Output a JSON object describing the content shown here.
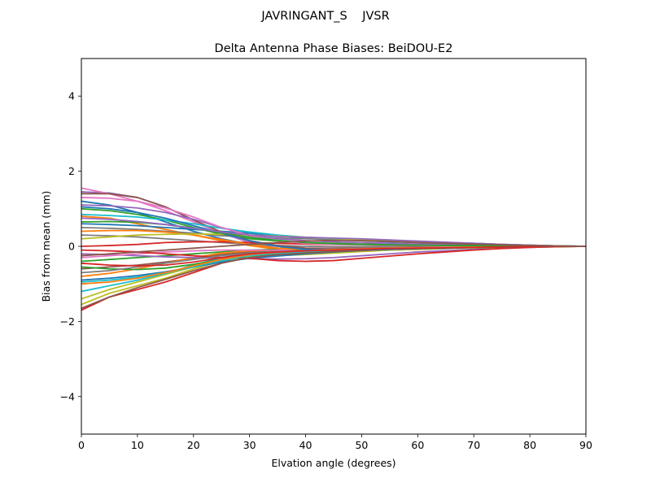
{
  "figure": {
    "suptitle": "JAVRINGANT_S    JVSR"
  },
  "chart_data": {
    "type": "line",
    "title": "Delta Antenna Phase Biases: BeiDOU-E2",
    "xlabel": "Elvation angle (degrees)",
    "ylabel": "Bias from mean (mm)",
    "xlim": [
      0,
      90
    ],
    "ylim": [
      -5,
      5
    ],
    "xticks": [
      0,
      10,
      20,
      30,
      40,
      50,
      60,
      70,
      80,
      90
    ],
    "yticks": [
      -4,
      -2,
      0,
      2,
      4
    ],
    "ytick_labels": [
      "−4",
      "−2",
      "0",
      "2",
      "4"
    ],
    "grid": false,
    "legend": "none",
    "x": [
      0,
      5,
      10,
      15,
      20,
      25,
      30,
      35,
      40,
      45,
      50,
      55,
      60,
      65,
      70,
      75,
      80,
      85,
      90
    ],
    "series": [
      {
        "color": "#1f77b4",
        "values": [
          1.2,
          1.1,
          0.9,
          0.65,
          0.4,
          0.2,
          0.05,
          -0.05,
          -0.08,
          -0.07,
          -0.05,
          -0.04,
          -0.03,
          -0.02,
          -0.02,
          -0.01,
          -0.01,
          0,
          0
        ]
      },
      {
        "color": "#ff7f0e",
        "values": [
          0.8,
          0.75,
          0.6,
          0.45,
          0.3,
          0.15,
          0.02,
          -0.08,
          -0.1,
          -0.08,
          -0.06,
          -0.05,
          -0.04,
          -0.03,
          -0.02,
          -0.01,
          -0.01,
          0,
          0
        ]
      },
      {
        "color": "#2ca02c",
        "values": [
          -0.4,
          -0.35,
          -0.3,
          -0.25,
          -0.2,
          -0.15,
          -0.1,
          -0.08,
          -0.06,
          -0.05,
          -0.04,
          -0.03,
          -0.02,
          -0.02,
          -0.01,
          -0.01,
          0,
          0,
          0
        ]
      },
      {
        "color": "#d62728",
        "values": [
          -1.7,
          -1.35,
          -1.15,
          -0.95,
          -0.7,
          -0.45,
          -0.22,
          -0.12,
          -0.08,
          -0.05,
          -0.03,
          -0.02,
          -0.02,
          -0.01,
          -0.01,
          0,
          0,
          0,
          0
        ]
      },
      {
        "color": "#9467bd",
        "values": [
          1.45,
          1.42,
          1.3,
          1.05,
          0.7,
          0.35,
          0.1,
          -0.05,
          -0.1,
          -0.08,
          -0.06,
          -0.05,
          -0.04,
          -0.03,
          -0.02,
          -0.01,
          -0.01,
          0,
          0
        ]
      },
      {
        "color": "#8c564b",
        "values": [
          -0.6,
          -0.55,
          -0.5,
          -0.42,
          -0.32,
          -0.22,
          -0.15,
          -0.1,
          -0.07,
          -0.05,
          -0.04,
          -0.03,
          -0.02,
          -0.01,
          -0.01,
          0,
          0,
          0,
          0
        ]
      },
      {
        "color": "#e377c2",
        "values": [
          1.55,
          1.4,
          1.2,
          0.95,
          0.65,
          0.35,
          0.12,
          0.0,
          -0.05,
          -0.05,
          -0.04,
          -0.03,
          -0.02,
          -0.02,
          -0.01,
          -0.01,
          0,
          0,
          0
        ]
      },
      {
        "color": "#7f7f7f",
        "values": [
          0.3,
          0.28,
          0.25,
          0.2,
          0.15,
          0.1,
          0.05,
          0.02,
          0.0,
          -0.01,
          -0.01,
          -0.01,
          0,
          0,
          0,
          0,
          0,
          0,
          0
        ]
      },
      {
        "color": "#bcbd22",
        "values": [
          -1.4,
          -1.15,
          -0.95,
          -0.75,
          -0.55,
          -0.38,
          -0.28,
          -0.25,
          -0.22,
          -0.18,
          -0.14,
          -0.1,
          -0.08,
          -0.06,
          -0.04,
          -0.03,
          -0.02,
          -0.01,
          0
        ]
      },
      {
        "color": "#17becf",
        "values": [
          -1.2,
          -1.05,
          -0.9,
          -0.72,
          -0.5,
          -0.3,
          -0.18,
          -0.14,
          -0.1,
          -0.08,
          -0.06,
          -0.05,
          -0.04,
          -0.03,
          -0.02,
          -0.01,
          -0.01,
          0,
          0
        ]
      },
      {
        "color": "#1f77b4",
        "values": [
          0.6,
          0.58,
          0.55,
          0.5,
          0.45,
          0.4,
          0.35,
          0.28,
          0.22,
          0.18,
          0.15,
          0.12,
          0.1,
          0.08,
          0.06,
          0.04,
          0.03,
          0.01,
          0
        ]
      },
      {
        "color": "#ff7f0e",
        "values": [
          -0.8,
          -0.72,
          -0.6,
          -0.45,
          -0.3,
          -0.18,
          -0.12,
          -0.1,
          -0.08,
          -0.06,
          -0.05,
          -0.04,
          -0.03,
          -0.02,
          -0.02,
          -0.01,
          -0.01,
          0,
          0
        ]
      },
      {
        "color": "#2ca02c",
        "values": [
          1.0,
          0.95,
          0.85,
          0.7,
          0.5,
          0.32,
          0.2,
          0.14,
          0.1,
          0.08,
          0.06,
          0.05,
          0.04,
          0.03,
          0.02,
          0.01,
          0.01,
          0,
          0
        ]
      },
      {
        "color": "#d62728",
        "values": [
          0.0,
          0.02,
          0.05,
          0.1,
          0.12,
          0.12,
          0.1,
          0.08,
          0.06,
          0.05,
          0.04,
          0.03,
          0.02,
          0.01,
          0.01,
          0,
          0,
          0,
          0
        ]
      },
      {
        "color": "#9467bd",
        "values": [
          -0.2,
          -0.22,
          -0.25,
          -0.28,
          -0.3,
          -0.32,
          -0.33,
          -0.34,
          -0.33,
          -0.3,
          -0.25,
          -0.2,
          -0.15,
          -0.12,
          -0.08,
          -0.05,
          -0.03,
          -0.01,
          0
        ]
      },
      {
        "color": "#8c564b",
        "values": [
          1.4,
          1.4,
          1.3,
          1.05,
          0.7,
          0.38,
          0.15,
          0.02,
          -0.05,
          -0.06,
          -0.05,
          -0.04,
          -0.03,
          -0.02,
          -0.02,
          -0.01,
          -0.01,
          0,
          0
        ]
      },
      {
        "color": "#e377c2",
        "values": [
          -0.3,
          -0.25,
          -0.2,
          -0.15,
          -0.12,
          -0.1,
          -0.1,
          -0.1,
          -0.09,
          -0.08,
          -0.06,
          -0.05,
          -0.04,
          -0.03,
          -0.02,
          -0.01,
          -0.01,
          0,
          0
        ]
      },
      {
        "color": "#7f7f7f",
        "values": [
          0.5,
          0.48,
          0.45,
          0.4,
          0.35,
          0.28,
          0.25,
          0.22,
          0.2,
          0.18,
          0.16,
          0.14,
          0.12,
          0.1,
          0.08,
          0.05,
          0.03,
          0.01,
          0
        ]
      },
      {
        "color": "#bcbd22",
        "values": [
          -1.55,
          -1.25,
          -1.05,
          -0.85,
          -0.6,
          -0.4,
          -0.28,
          -0.24,
          -0.2,
          -0.16,
          -0.12,
          -0.1,
          -0.08,
          -0.06,
          -0.04,
          -0.03,
          -0.02,
          -0.01,
          0
        ]
      },
      {
        "color": "#17becf",
        "values": [
          0.85,
          0.82,
          0.78,
          0.7,
          0.6,
          0.48,
          0.38,
          0.3,
          0.24,
          0.2,
          0.17,
          0.15,
          0.13,
          0.1,
          0.08,
          0.05,
          0.03,
          0.01,
          0
        ]
      },
      {
        "color": "#1f77b4",
        "values": [
          -0.9,
          -0.85,
          -0.78,
          -0.68,
          -0.55,
          -0.42,
          -0.32,
          -0.26,
          -0.2,
          -0.15,
          -0.11,
          -0.08,
          -0.06,
          -0.05,
          -0.03,
          -0.02,
          -0.01,
          0,
          0
        ]
      },
      {
        "color": "#ff7f0e",
        "values": [
          0.4,
          0.42,
          0.42,
          0.38,
          0.3,
          0.18,
          0.05,
          -0.05,
          -0.1,
          -0.1,
          -0.08,
          -0.06,
          -0.05,
          -0.04,
          -0.03,
          -0.02,
          -0.01,
          0,
          0
        ]
      },
      {
        "color": "#2ca02c",
        "values": [
          -0.55,
          -0.6,
          -0.62,
          -0.58,
          -0.48,
          -0.35,
          -0.25,
          -0.2,
          -0.16,
          -0.12,
          -0.09,
          -0.07,
          -0.05,
          -0.04,
          -0.03,
          -0.02,
          -0.01,
          0,
          0
        ]
      },
      {
        "color": "#d62728",
        "values": [
          -0.1,
          -0.12,
          -0.15,
          -0.2,
          -0.25,
          -0.3,
          -0.32,
          -0.38,
          -0.4,
          -0.38,
          -0.32,
          -0.26,
          -0.2,
          -0.15,
          -0.1,
          -0.06,
          -0.03,
          -0.01,
          0
        ]
      },
      {
        "color": "#9467bd",
        "values": [
          1.1,
          1.08,
          1.02,
          0.9,
          0.72,
          0.5,
          0.3,
          0.2,
          0.15,
          0.12,
          0.1,
          0.08,
          0.06,
          0.05,
          0.04,
          0.03,
          0.02,
          0.01,
          0
        ]
      },
      {
        "color": "#8c564b",
        "values": [
          -1.65,
          -1.35,
          -1.1,
          -0.88,
          -0.65,
          -0.45,
          -0.3,
          -0.22,
          -0.18,
          -0.14,
          -0.11,
          -0.08,
          -0.06,
          -0.05,
          -0.03,
          -0.02,
          -0.01,
          0,
          0
        ]
      },
      {
        "color": "#e377c2",
        "values": [
          1.3,
          1.28,
          1.2,
          1.02,
          0.78,
          0.5,
          0.28,
          0.15,
          0.08,
          0.05,
          0.04,
          0.03,
          0.02,
          0.01,
          0.01,
          0,
          0,
          0,
          0
        ]
      },
      {
        "color": "#7f7f7f",
        "values": [
          -0.7,
          -0.65,
          -0.55,
          -0.45,
          -0.35,
          -0.25,
          -0.18,
          -0.14,
          -0.1,
          -0.08,
          -0.06,
          -0.05,
          -0.04,
          -0.03,
          -0.02,
          -0.01,
          -0.01,
          0,
          0
        ]
      },
      {
        "color": "#bcbd22",
        "values": [
          0.2,
          0.25,
          0.3,
          0.32,
          0.33,
          0.32,
          0.3,
          0.27,
          0.24,
          0.21,
          0.18,
          0.15,
          0.12,
          0.09,
          0.07,
          0.05,
          0.03,
          0.01,
          0
        ]
      },
      {
        "color": "#17becf",
        "values": [
          -0.95,
          -0.9,
          -0.82,
          -0.7,
          -0.55,
          -0.38,
          -0.25,
          -0.18,
          -0.14,
          -0.1,
          -0.08,
          -0.06,
          -0.05,
          -0.04,
          -0.03,
          -0.02,
          -0.01,
          0,
          0
        ]
      },
      {
        "color": "#1f77b4",
        "values": [
          1.05,
          1.0,
          0.9,
          0.75,
          0.55,
          0.35,
          0.15,
          0.0,
          -0.08,
          -0.1,
          -0.09,
          -0.08,
          -0.06,
          -0.05,
          -0.03,
          -0.02,
          -0.01,
          0,
          0
        ]
      },
      {
        "color": "#ff7f0e",
        "values": [
          -1.0,
          -0.95,
          -0.85,
          -0.7,
          -0.52,
          -0.35,
          -0.22,
          -0.16,
          -0.12,
          -0.09,
          -0.07,
          -0.05,
          -0.04,
          -0.03,
          -0.02,
          -0.01,
          -0.01,
          0,
          0
        ]
      },
      {
        "color": "#2ca02c",
        "values": [
          0.65,
          0.66,
          0.64,
          0.58,
          0.48,
          0.36,
          0.24,
          0.16,
          0.1,
          0.07,
          0.05,
          0.04,
          0.03,
          0.02,
          0.02,
          0.01,
          0.01,
          0,
          0
        ]
      },
      {
        "color": "#d62728",
        "values": [
          -0.45,
          -0.5,
          -0.52,
          -0.5,
          -0.42,
          -0.3,
          -0.2,
          -0.15,
          -0.12,
          -0.1,
          -0.08,
          -0.06,
          -0.05,
          -0.04,
          -0.03,
          -0.02,
          -0.01,
          0,
          0
        ]
      },
      {
        "color": "#9467bd",
        "values": [
          0.75,
          0.72,
          0.66,
          0.58,
          0.48,
          0.38,
          0.3,
          0.26,
          0.24,
          0.22,
          0.2,
          0.17,
          0.14,
          0.11,
          0.08,
          0.05,
          0.03,
          0.01,
          0
        ]
      },
      {
        "color": "#8c564b",
        "values": [
          -0.25,
          -0.2,
          -0.15,
          -0.1,
          -0.05,
          0.0,
          0.05,
          0.1,
          0.14,
          0.16,
          0.15,
          0.13,
          0.1,
          0.08,
          0.06,
          0.04,
          0.02,
          0.01,
          0
        ]
      }
    ]
  }
}
